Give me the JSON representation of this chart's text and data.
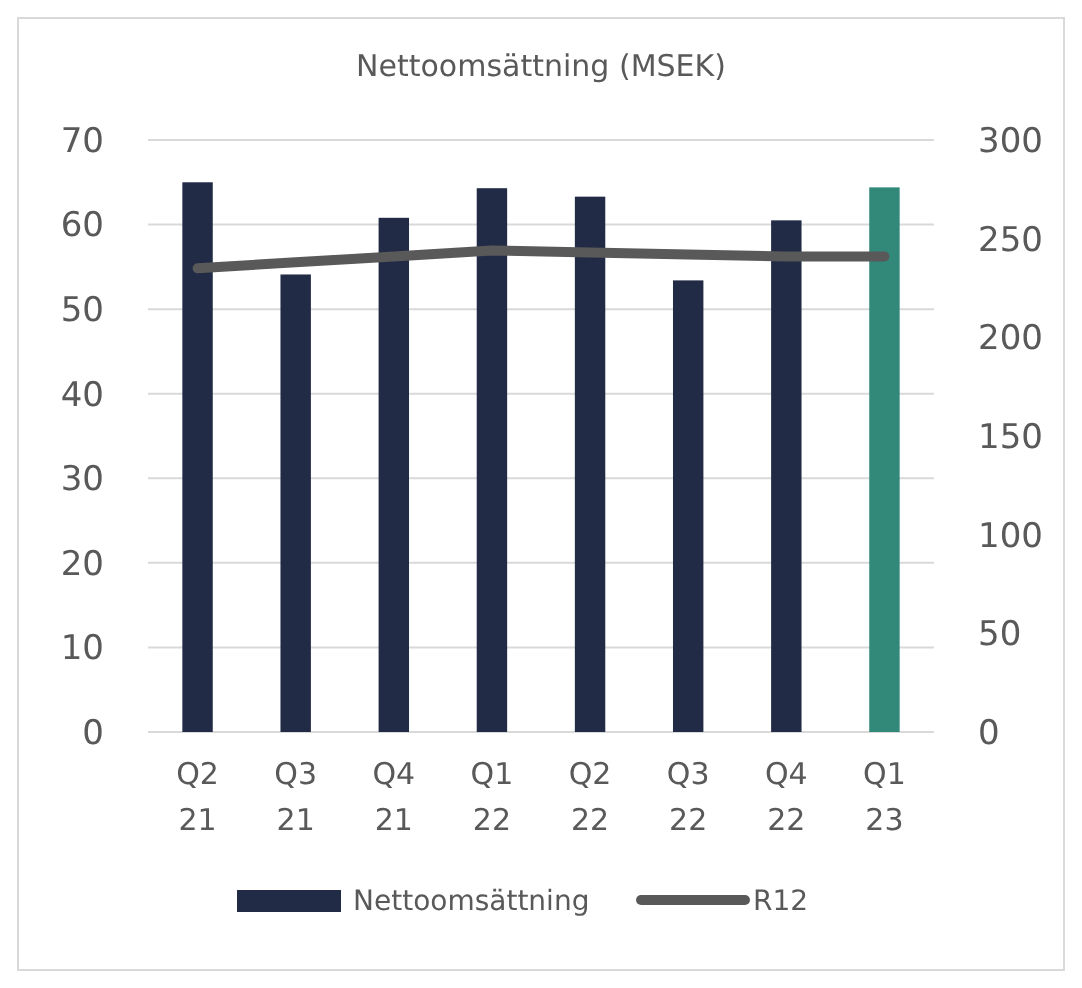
{
  "chart_data": {
    "type": "bar",
    "title": "Nettoomsättning (MSEK)",
    "categories": [
      "Q2 21",
      "Q3 21",
      "Q4 21",
      "Q1 22",
      "Q2 22",
      "Q3 22",
      "Q4 22",
      "Q1 23"
    ],
    "series": [
      {
        "name": "Nettoomsättning",
        "color": "#212b45",
        "colors": [
          "#212b45",
          "#212b45",
          "#212b45",
          "#212b45",
          "#212b45",
          "#212b45",
          "#212b45",
          "#32897a"
        ],
        "values": [
          65,
          54.1,
          60.8,
          64.3,
          63.3,
          53.4,
          60.5,
          64.4
        ]
      },
      {
        "name": "R12",
        "type": "line",
        "axis": "y2",
        "color": "#595959",
        "values": [
          235,
          238,
          241,
          244,
          243,
          242,
          241,
          241
        ]
      }
    ],
    "ylim": [
      0,
      70
    ],
    "yticks": [
      0,
      10,
      20,
      30,
      40,
      50,
      60,
      70
    ],
    "y2lim": [
      0,
      300
    ],
    "y2ticks": [
      0,
      50,
      100,
      150,
      200,
      250,
      300
    ],
    "grid": "y",
    "legend": "bottom",
    "marker": "none",
    "line_style": "solid"
  }
}
